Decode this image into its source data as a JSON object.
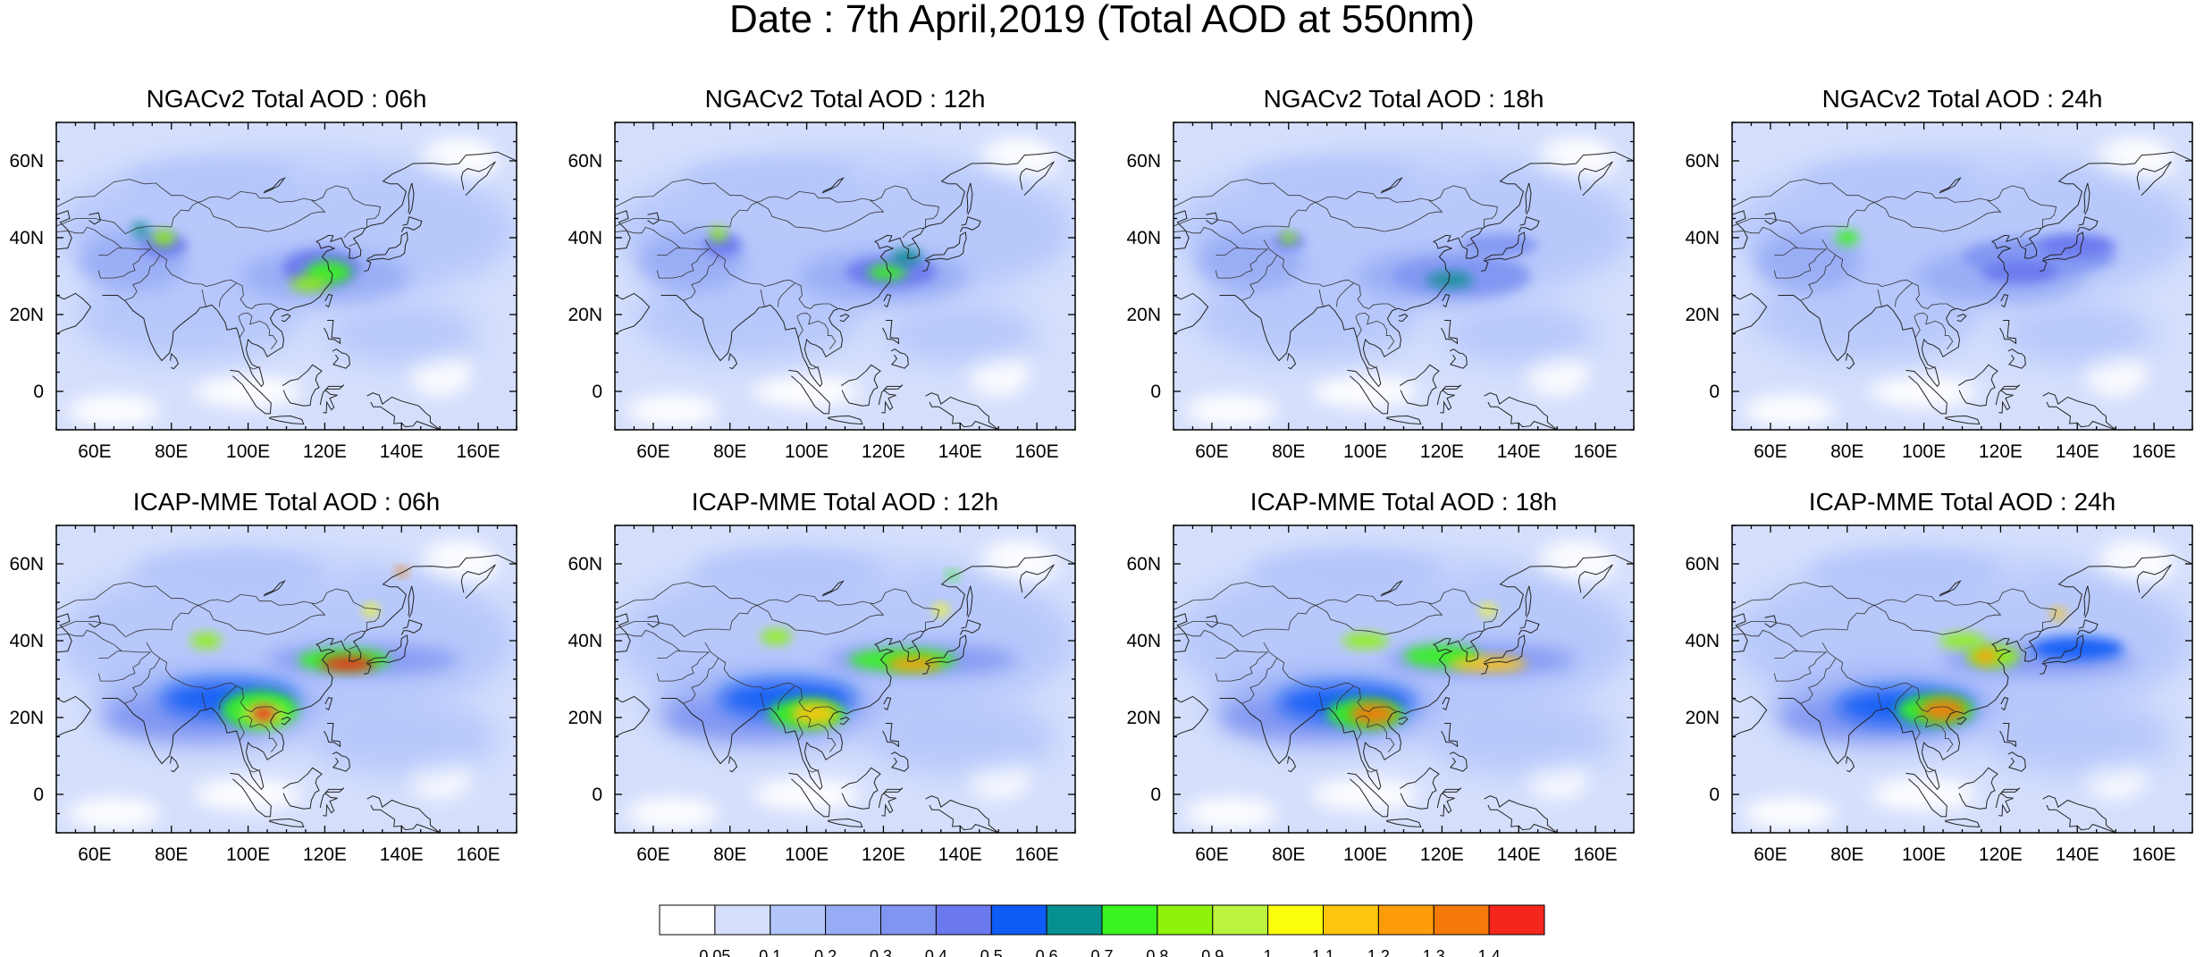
{
  "title": "Date : 7th April,2019 (Total AOD at 550nm)",
  "panels": [
    {
      "title": "NGACv2 Total AOD : 06h",
      "model": "NGACv2",
      "hour": "06h"
    },
    {
      "title": "NGACv2 Total AOD : 12h",
      "model": "NGACv2",
      "hour": "12h"
    },
    {
      "title": "NGACv2 Total AOD : 18h",
      "model": "NGACv2",
      "hour": "18h"
    },
    {
      "title": "NGACv2 Total AOD : 24h",
      "model": "NGACv2",
      "hour": "24h"
    },
    {
      "title": "ICAP-MME Total AOD : 06h",
      "model": "ICAP-MME",
      "hour": "06h"
    },
    {
      "title": "ICAP-MME Total AOD : 12h",
      "model": "ICAP-MME",
      "hour": "12h"
    },
    {
      "title": "ICAP-MME Total AOD : 18h",
      "model": "ICAP-MME",
      "hour": "18h"
    },
    {
      "title": "ICAP-MME Total AOD : 24h",
      "model": "ICAP-MME",
      "hour": "24h"
    }
  ],
  "map_extent": {
    "lon": [
      50,
      170
    ],
    "lat": [
      -10,
      70
    ]
  },
  "lon_ticks": [
    "60E",
    "80E",
    "100E",
    "120E",
    "140E",
    "160E"
  ],
  "lat_ticks": [
    "60N",
    "40N",
    "20N",
    "0"
  ],
  "colorbar": {
    "labels": [
      "0.05",
      "0.1",
      "0.2",
      "0.3",
      "0.4",
      "0.5",
      "0.6",
      "0.7",
      "0.8",
      "0.9",
      "1",
      "1.1",
      "1.2",
      "1.3",
      "1.4"
    ],
    "colors": [
      "#ffffff",
      "#d5dffc",
      "#b4c6fb",
      "#97acf5",
      "#8094f2",
      "#6b78ee",
      "#0e5cf6",
      "#079090",
      "#39f41e",
      "#8ef20a",
      "#bbf33e",
      "#fcfd08",
      "#fdc60c",
      "#fd9d09",
      "#f57a0a",
      "#f5261c"
    ]
  }
}
